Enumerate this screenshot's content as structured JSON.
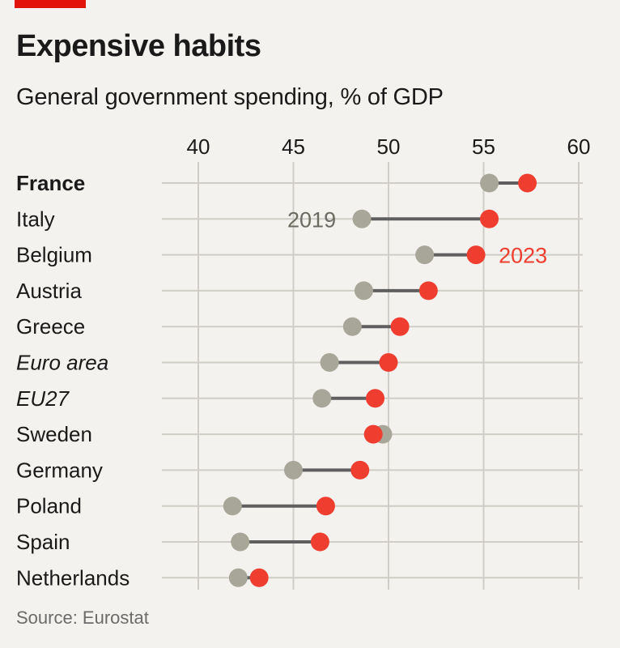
{
  "header": {
    "title": "Expensive habits",
    "subtitle": "General government spending, % of GDP"
  },
  "footer": {
    "source": "Source: Eurostat"
  },
  "colors": {
    "brand_red": "#e3120b",
    "dot_2019": "#a8a699",
    "dot_2023": "#ef3e2f",
    "connector": "#5f5f5f",
    "grid": "#cfcdc6",
    "label_2019": "#6b6b62",
    "label_2023": "#ef3e2f"
  },
  "chart_data": {
    "type": "dot-range",
    "title": "Expensive habits",
    "subtitle": "General government spending, % of GDP",
    "xlim": [
      40,
      60
    ],
    "xticks": [
      40,
      45,
      50,
      55,
      60
    ],
    "grid": true,
    "series": [
      {
        "name": "2019",
        "values": [
          55.3,
          48.6,
          51.9,
          48.7,
          48.1,
          46.9,
          46.5,
          49.7,
          45.0,
          41.8,
          42.2,
          42.1
        ]
      },
      {
        "name": "2023",
        "values": [
          57.3,
          55.3,
          54.6,
          52.1,
          50.6,
          50.0,
          49.3,
          49.2,
          48.5,
          46.7,
          46.4,
          43.2
        ]
      }
    ],
    "categories": [
      {
        "label": "France",
        "style": "bold"
      },
      {
        "label": "Italy",
        "style": "normal"
      },
      {
        "label": "Belgium",
        "style": "normal"
      },
      {
        "label": "Austria",
        "style": "normal"
      },
      {
        "label": "Greece",
        "style": "normal"
      },
      {
        "label": "Euro area",
        "style": "italic"
      },
      {
        "label": "EU27",
        "style": "italic"
      },
      {
        "label": "Sweden",
        "style": "normal"
      },
      {
        "label": "Germany",
        "style": "normal"
      },
      {
        "label": "Poland",
        "style": "normal"
      },
      {
        "label": "Spain",
        "style": "normal"
      },
      {
        "label": "Netherlands",
        "style": "normal"
      }
    ],
    "annotations": [
      {
        "text": "2019",
        "category": "Italy",
        "series": "2019",
        "side": "left"
      },
      {
        "text": "2023",
        "category": "Belgium",
        "series": "2023",
        "side": "right"
      }
    ]
  }
}
